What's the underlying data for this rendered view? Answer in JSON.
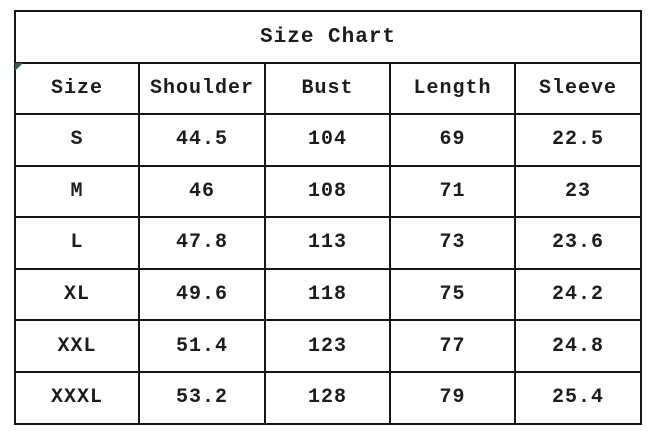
{
  "table": {
    "title": "Size Chart",
    "columns": [
      "Size",
      "Shoulder",
      "Bust",
      "Length",
      "Sleeve"
    ],
    "rows": [
      {
        "cells": [
          "S",
          "44.5",
          "104",
          "69",
          "22.5"
        ]
      },
      {
        "cells": [
          "M",
          "46",
          "108",
          "71",
          "23"
        ]
      },
      {
        "cells": [
          "L",
          "47.8",
          "113",
          "73",
          "23.6"
        ]
      },
      {
        "cells": [
          "XL",
          "49.6",
          "118",
          "75",
          "24.2"
        ]
      },
      {
        "cells": [
          "XXL",
          "51.4",
          "123",
          "77",
          "24.8"
        ]
      },
      {
        "cells": [
          "XXXL",
          "53.2",
          "128",
          "79",
          "25.4"
        ]
      }
    ]
  },
  "chart_data": {
    "type": "table",
    "title": "Size Chart",
    "categories": [
      "S",
      "M",
      "L",
      "XL",
      "XXL",
      "XXXL"
    ],
    "series": [
      {
        "name": "Shoulder",
        "values": [
          44.5,
          46,
          47.8,
          49.6,
          51.4,
          53.2
        ]
      },
      {
        "name": "Bust",
        "values": [
          104,
          108,
          113,
          118,
          123,
          128
        ]
      },
      {
        "name": "Length",
        "values": [
          69,
          71,
          73,
          75,
          77,
          79
        ]
      },
      {
        "name": "Sleeve",
        "values": [
          22.5,
          23,
          23.6,
          24.2,
          24.8,
          25.4
        ]
      }
    ]
  },
  "icons": {
    "corner_marker": "cell-error-triangle-icon"
  },
  "colors": {
    "background": "#ffffff",
    "border": "#161616",
    "text": "#1c1c1c",
    "marker_green": "#2e6150"
  }
}
